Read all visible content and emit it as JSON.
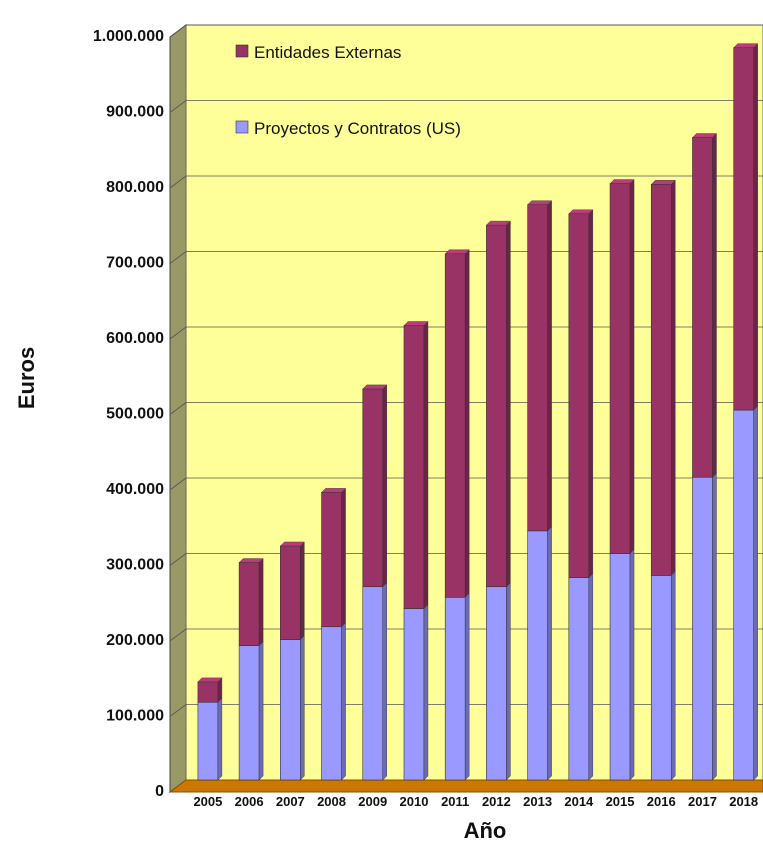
{
  "chart_data": {
    "type": "bar",
    "stacked": true,
    "categories": [
      "2005",
      "2006",
      "2007",
      "2008",
      "2009",
      "2010",
      "2011",
      "2012",
      "2013",
      "2014",
      "2015",
      "2016",
      "2017",
      "2018"
    ],
    "series": [
      {
        "name": "Proyectos y Contratos (US)",
        "color": "#9999FF",
        "values": [
          103000,
          178000,
          186000,
          203000,
          256000,
          227000,
          242000,
          256000,
          330000,
          268000,
          300000,
          271000,
          401000,
          490000
        ]
      },
      {
        "name": "Entidades Externas",
        "color": "#993366",
        "values": [
          27000,
          110000,
          124000,
          178000,
          262000,
          375000,
          455000,
          479000,
          432000,
          482000,
          490000,
          518000,
          450000,
          480000
        ]
      }
    ],
    "xlabel": "Año",
    "ylabel": "Euros",
    "ylim": [
      0,
      1000000
    ],
    "yticks": [
      "0",
      "100.000",
      "200.000",
      "300.000",
      "400.000",
      "500.000",
      "600.000",
      "700.000",
      "800.000",
      "900.000",
      "1.000.000"
    ],
    "legend": "top-left inside plot",
    "grid": true,
    "plot_background": "#FFFF99",
    "floor_color": "#CC7700"
  }
}
